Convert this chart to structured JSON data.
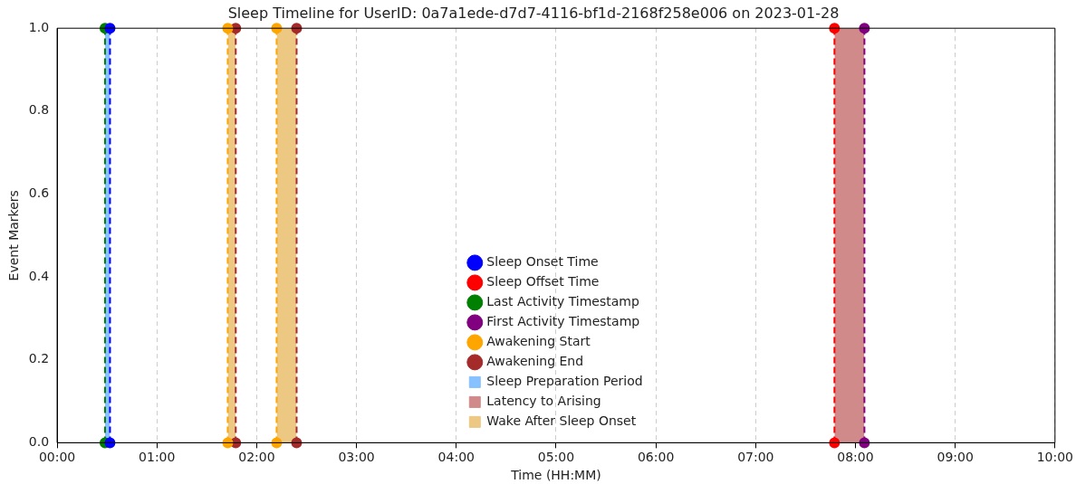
{
  "chart_data": {
    "type": "line",
    "title": "Sleep Timeline for UserID: 0a7a1ede-d7d7-4116-bf1d-2168f258e006 on 2023-01-28",
    "xlabel": "Time (HH:MM)",
    "ylabel": "Event Markers",
    "xlim": [
      0,
      10
    ],
    "xticks": [
      {
        "value": 0,
        "label": "00:00"
      },
      {
        "value": 1,
        "label": "01:00"
      },
      {
        "value": 2,
        "label": "02:00"
      },
      {
        "value": 3,
        "label": "03:00"
      },
      {
        "value": 4,
        "label": "04:00"
      },
      {
        "value": 5,
        "label": "05:00"
      },
      {
        "value": 6,
        "label": "06:00"
      },
      {
        "value": 7,
        "label": "07:00"
      },
      {
        "value": 8,
        "label": "08:00"
      },
      {
        "value": 9,
        "label": "09:00"
      },
      {
        "value": 10,
        "label": "10:00"
      }
    ],
    "ylim": [
      0,
      1
    ],
    "yticks": [
      {
        "value": 0,
        "label": "0.0"
      },
      {
        "value": 0.2,
        "label": "0.2"
      },
      {
        "value": 0.4,
        "label": "0.4"
      },
      {
        "value": 0.6,
        "label": "0.6"
      },
      {
        "value": 0.8,
        "label": "0.8"
      },
      {
        "value": 1,
        "label": "1.0"
      }
    ],
    "grid": "x",
    "legend": "bottom",
    "series": [
      {
        "name": "Sleep Onset Time",
        "color": "#0000ff",
        "marker": "circle",
        "line_style": "dashed",
        "x": [
          0.53,
          0.53
        ],
        "values": [
          0,
          1
        ]
      },
      {
        "name": "Sleep Offset Time",
        "color": "#ff0000",
        "marker": "circle",
        "line_style": "dashed",
        "x": [
          7.79,
          7.79
        ],
        "values": [
          0,
          1
        ]
      },
      {
        "name": "Last Activity Timestamp",
        "color": "#008000",
        "marker": "circle",
        "line_style": "dashed",
        "x": [
          0.48,
          0.48
        ],
        "values": [
          0,
          1
        ]
      },
      {
        "name": "First Activity Timestamp",
        "color": "#800080",
        "marker": "circle",
        "line_style": "dashed",
        "x": [
          8.09,
          8.09
        ],
        "values": [
          0,
          1
        ]
      },
      {
        "name": "Awakening Start",
        "color": "#ffa500",
        "marker": "circle",
        "line_style": "dashed",
        "x": [
          1.71,
          1.71,
          null,
          2.2,
          2.2
        ],
        "values": [
          0,
          1,
          null,
          0,
          1
        ]
      },
      {
        "name": "Awakening End",
        "color": "#a52a2a",
        "marker": "circle",
        "line_style": "dashed",
        "x": [
          1.79,
          1.79,
          null,
          2.4,
          2.4
        ],
        "values": [
          0,
          1,
          null,
          0,
          1
        ]
      },
      {
        "type": "area",
        "name": "Sleep Preparation Period",
        "color": "#87c1ff",
        "x": [
          0.48,
          0.53
        ],
        "values": [
          1,
          1
        ]
      },
      {
        "type": "area",
        "name": "Latency to Arising",
        "color": "#d08a8a",
        "x": [
          7.79,
          8.09
        ],
        "values": [
          1,
          1
        ]
      },
      {
        "type": "area",
        "name": "Wake After Sleep Onset",
        "color": "#ecc882",
        "x": [
          1.71,
          1.79,
          null,
          2.2,
          2.4
        ],
        "values": [
          1,
          1,
          null,
          1,
          1
        ]
      }
    ]
  }
}
